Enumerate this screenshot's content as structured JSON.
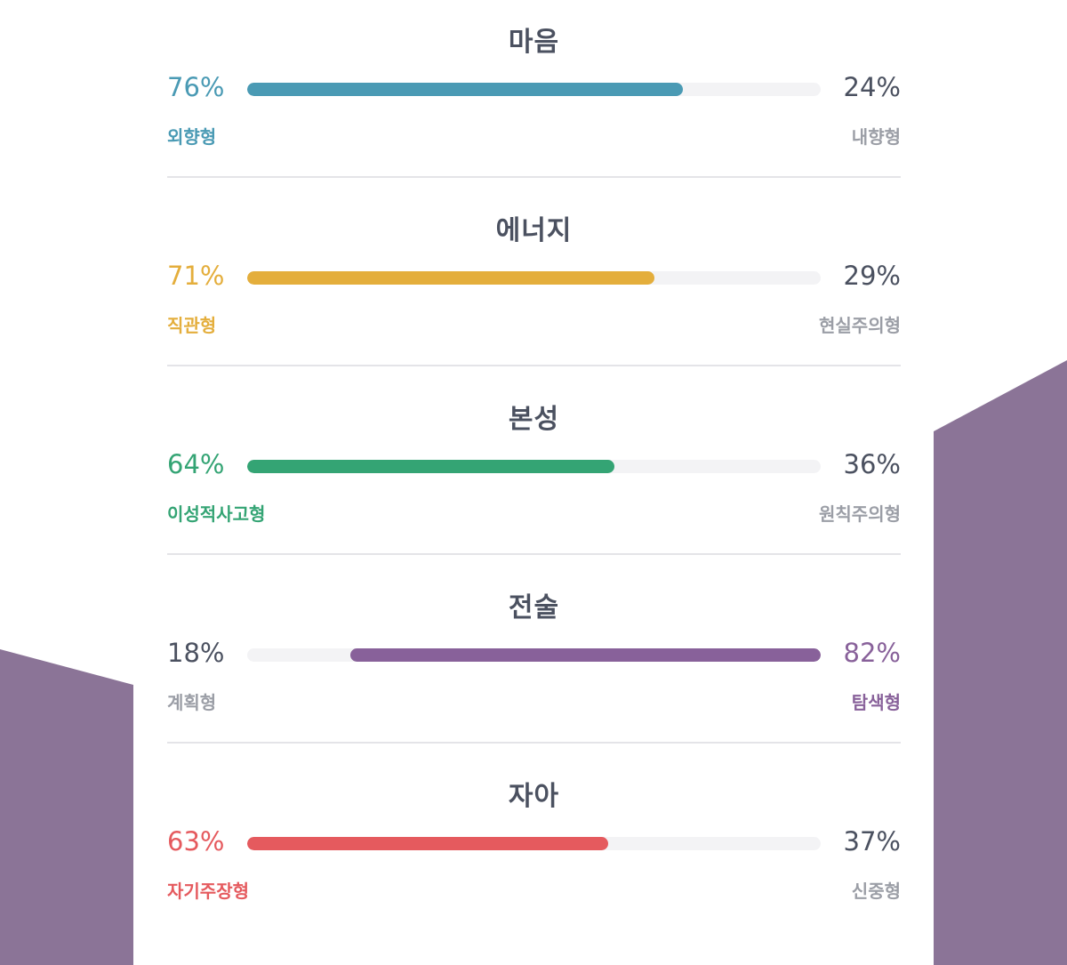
{
  "colors": {
    "background_shape": "#8b7497",
    "card": "#ffffff",
    "neutral_text": "#4b5160",
    "muted_label": "#9b9ea6",
    "track": "#f3f3f5"
  },
  "traits": [
    {
      "title": "마음",
      "left_percent": "76%",
      "right_percent": "24%",
      "left_label": "외향형",
      "right_label": "내향형",
      "dominant_side": "left",
      "fill_fraction": 0.76,
      "color": "#4a9ab4"
    },
    {
      "title": "에너지",
      "left_percent": "71%",
      "right_percent": "29%",
      "left_label": "직관형",
      "right_label": "현실주의형",
      "dominant_side": "left",
      "fill_fraction": 0.71,
      "color": "#e4ae3c"
    },
    {
      "title": "본성",
      "left_percent": "64%",
      "right_percent": "36%",
      "left_label": "이성적사고형",
      "right_label": "원칙주의형",
      "dominant_side": "left",
      "fill_fraction": 0.64,
      "color": "#34a474"
    },
    {
      "title": "전술",
      "left_percent": "18%",
      "right_percent": "82%",
      "left_label": "계획형",
      "right_label": "탐색형",
      "dominant_side": "right",
      "fill_fraction": 0.82,
      "color": "#88619a"
    },
    {
      "title": "자아",
      "left_percent": "63%",
      "right_percent": "37%",
      "left_label": "자기주장형",
      "right_label": "신중형",
      "dominant_side": "left",
      "fill_fraction": 0.63,
      "color": "#e55a5e"
    }
  ]
}
